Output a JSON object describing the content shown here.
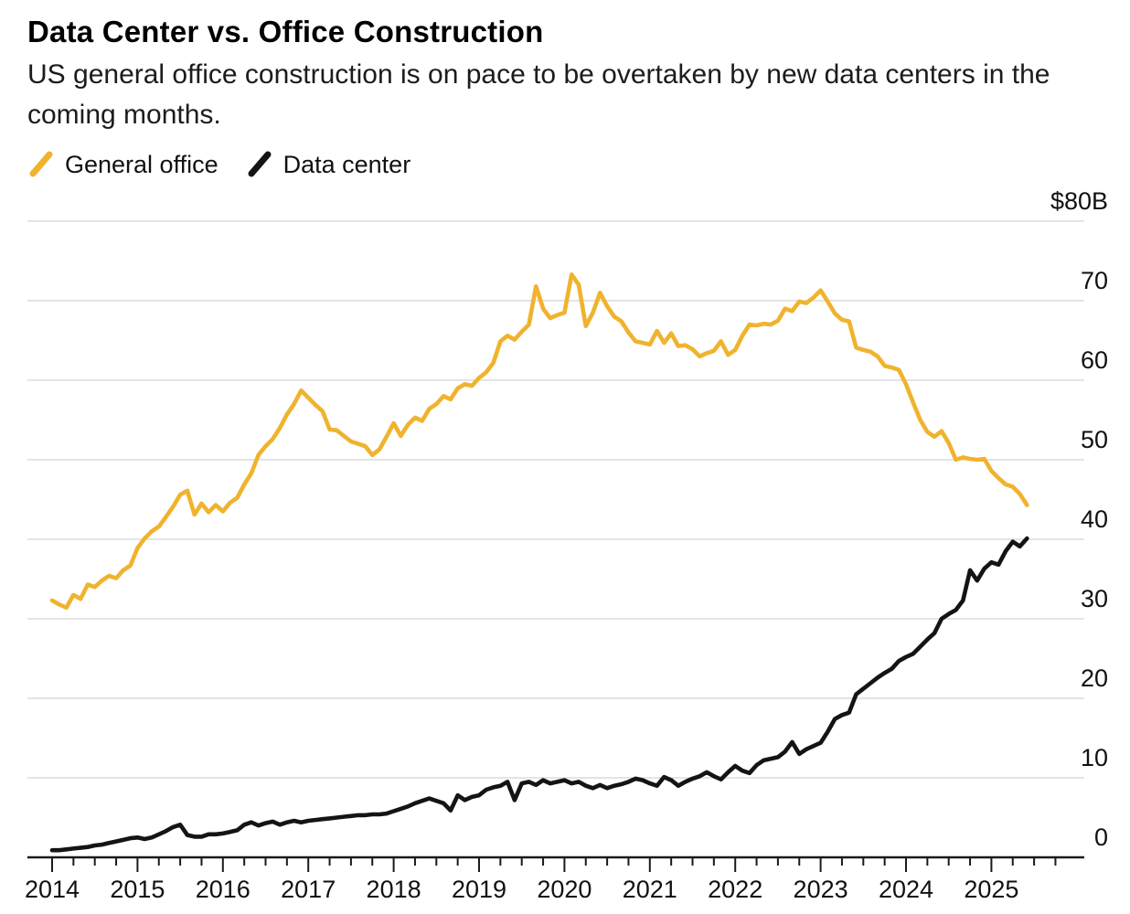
{
  "header": {
    "title": "Data Center vs. Office Construction",
    "subtitle": "US general office construction is on pace to be overtaken by new data centers in the coming months."
  },
  "legend": {
    "items": [
      {
        "label": "General office",
        "color": "#F0B32E",
        "marker": "slash-icon"
      },
      {
        "label": "Data center",
        "color": "#141414",
        "marker": "slash-icon"
      }
    ]
  },
  "axes": {
    "y_axis_side": "right",
    "y_top_label": "$80B",
    "y_labels": [
      {
        "text": "$80B",
        "value": 80
      },
      {
        "text": "70",
        "value": 70
      },
      {
        "text": "60",
        "value": 60
      },
      {
        "text": "50",
        "value": 50
      },
      {
        "text": "40",
        "value": 40
      },
      {
        "text": "30",
        "value": 30
      },
      {
        "text": "20",
        "value": 20
      },
      {
        "text": "10",
        "value": 10
      },
      {
        "text": "0",
        "value": 0
      }
    ],
    "x_year_labels": [
      "2014",
      "2015",
      "2016",
      "2017",
      "2018",
      "2019",
      "2020",
      "2021",
      "2022",
      "2023",
      "2024",
      "2025"
    ]
  },
  "chart_data": {
    "type": "line",
    "title": "Data Center vs. Office Construction",
    "unit": "$B",
    "frequency": "monthly",
    "x_start": "2014-01",
    "x_end": "2025-06",
    "ylim": [
      0,
      80
    ],
    "y_gridline_values": [
      80,
      70,
      60,
      50,
      40,
      30,
      20,
      10
    ],
    "grid": "horizontal-only",
    "legend_position": "top-left",
    "minor_x_ticks": "quarterly",
    "series": [
      {
        "name": "General office",
        "color": "#F0B32E",
        "values": [
          32.3,
          31.8,
          31.4,
          33.0,
          32.5,
          34.3,
          34.0,
          34.8,
          35.4,
          35.1,
          36.1,
          36.7,
          38.9,
          40.1,
          41.0,
          41.6,
          42.8,
          44.1,
          45.6,
          46.1,
          43.1,
          44.5,
          43.4,
          44.3,
          43.5,
          44.6,
          45.2,
          46.9,
          48.3,
          50.6,
          51.7,
          52.6,
          54.0,
          55.7,
          57.0,
          58.7,
          57.8,
          56.9,
          56.1,
          53.8,
          53.7,
          53.0,
          52.3,
          52.0,
          51.7,
          50.6,
          51.3,
          52.9,
          54.6,
          53.0,
          54.4,
          55.3,
          54.9,
          56.4,
          57.0,
          58.0,
          57.6,
          59.0,
          59.5,
          59.3,
          60.3,
          61.0,
          62.2,
          64.9,
          65.6,
          65.1,
          66.1,
          67.0,
          71.8,
          69.0,
          67.8,
          68.2,
          68.5,
          73.3,
          72.0,
          66.8,
          68.5,
          71.0,
          69.3,
          68.0,
          67.4,
          66.0,
          64.9,
          64.7,
          64.5,
          66.2,
          64.7,
          65.9,
          64.3,
          64.4,
          63.9,
          63.0,
          63.4,
          63.7,
          64.9,
          63.2,
          63.8,
          65.6,
          67.0,
          66.9,
          67.1,
          67.0,
          67.5,
          69.0,
          68.7,
          69.9,
          69.7,
          70.4,
          71.3,
          69.9,
          68.4,
          67.6,
          67.4,
          64.1,
          63.8,
          63.6,
          63.0,
          61.8,
          61.6,
          61.3,
          59.5,
          57.2,
          55.0,
          53.5,
          52.9,
          53.6,
          52.1,
          50.0,
          50.3,
          50.1,
          50.0,
          50.1,
          48.6,
          47.7,
          46.9,
          46.6,
          45.7,
          44.3
        ]
      },
      {
        "name": "Data center",
        "color": "#141414",
        "values": [
          0.9,
          0.9,
          1.0,
          1.1,
          1.2,
          1.3,
          1.5,
          1.6,
          1.8,
          2.0,
          2.2,
          2.4,
          2.5,
          2.3,
          2.5,
          2.9,
          3.3,
          3.8,
          4.1,
          2.8,
          2.6,
          2.6,
          2.9,
          2.9,
          3.0,
          3.2,
          3.4,
          4.1,
          4.4,
          4.0,
          4.3,
          4.5,
          4.1,
          4.4,
          4.6,
          4.4,
          4.6,
          4.7,
          4.8,
          4.9,
          5.0,
          5.1,
          5.2,
          5.3,
          5.3,
          5.4,
          5.4,
          5.5,
          5.8,
          6.1,
          6.4,
          6.8,
          7.1,
          7.4,
          7.1,
          6.8,
          5.9,
          7.8,
          7.2,
          7.6,
          7.8,
          8.5,
          8.8,
          9.0,
          9.5,
          7.2,
          9.3,
          9.5,
          9.1,
          9.7,
          9.3,
          9.5,
          9.7,
          9.3,
          9.5,
          9.0,
          8.7,
          9.1,
          8.7,
          9.0,
          9.2,
          9.5,
          9.9,
          9.7,
          9.3,
          9.0,
          10.1,
          9.7,
          9.0,
          9.5,
          9.9,
          10.2,
          10.7,
          10.2,
          9.8,
          10.7,
          11.5,
          10.9,
          10.6,
          11.6,
          12.2,
          12.4,
          12.6,
          13.3,
          14.5,
          13.0,
          13.6,
          14.0,
          14.4,
          15.8,
          17.4,
          17.9,
          18.2,
          20.5,
          21.2,
          21.9,
          22.6,
          23.2,
          23.7,
          24.7,
          25.2,
          25.6,
          26.5,
          27.4,
          28.2,
          30.0,
          30.6,
          31.1,
          32.3,
          36.1,
          34.8,
          36.3,
          37.1,
          36.8,
          38.5,
          39.7,
          39.1,
          40.1
        ]
      }
    ]
  },
  "style": {
    "gridline_color": "#dcdcdc",
    "axis_color": "#1a1a1a",
    "background": "#ffffff"
  }
}
